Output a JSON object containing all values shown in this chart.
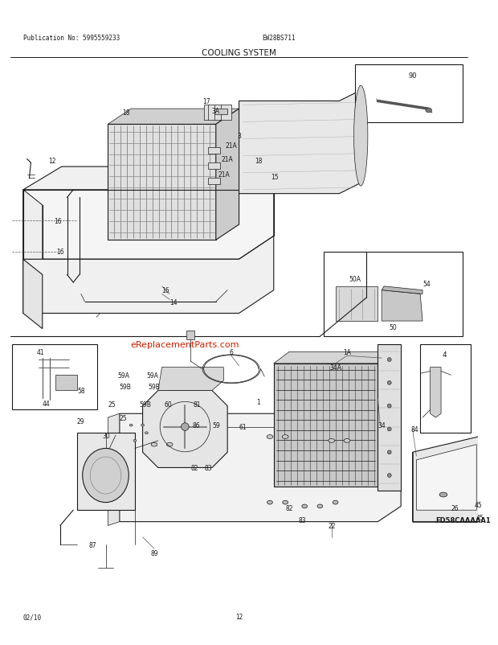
{
  "title": "COOLING SYSTEM",
  "pub_no": "Publication No: 5995559233",
  "model": "EW28BS711",
  "date": "02/10",
  "page": "12",
  "watermark": "eReplacementParts.com",
  "bg_color": "#ffffff",
  "fg_color": "#1a1a1a",
  "fig_width": 6.2,
  "fig_height": 8.03,
  "dpi": 100
}
